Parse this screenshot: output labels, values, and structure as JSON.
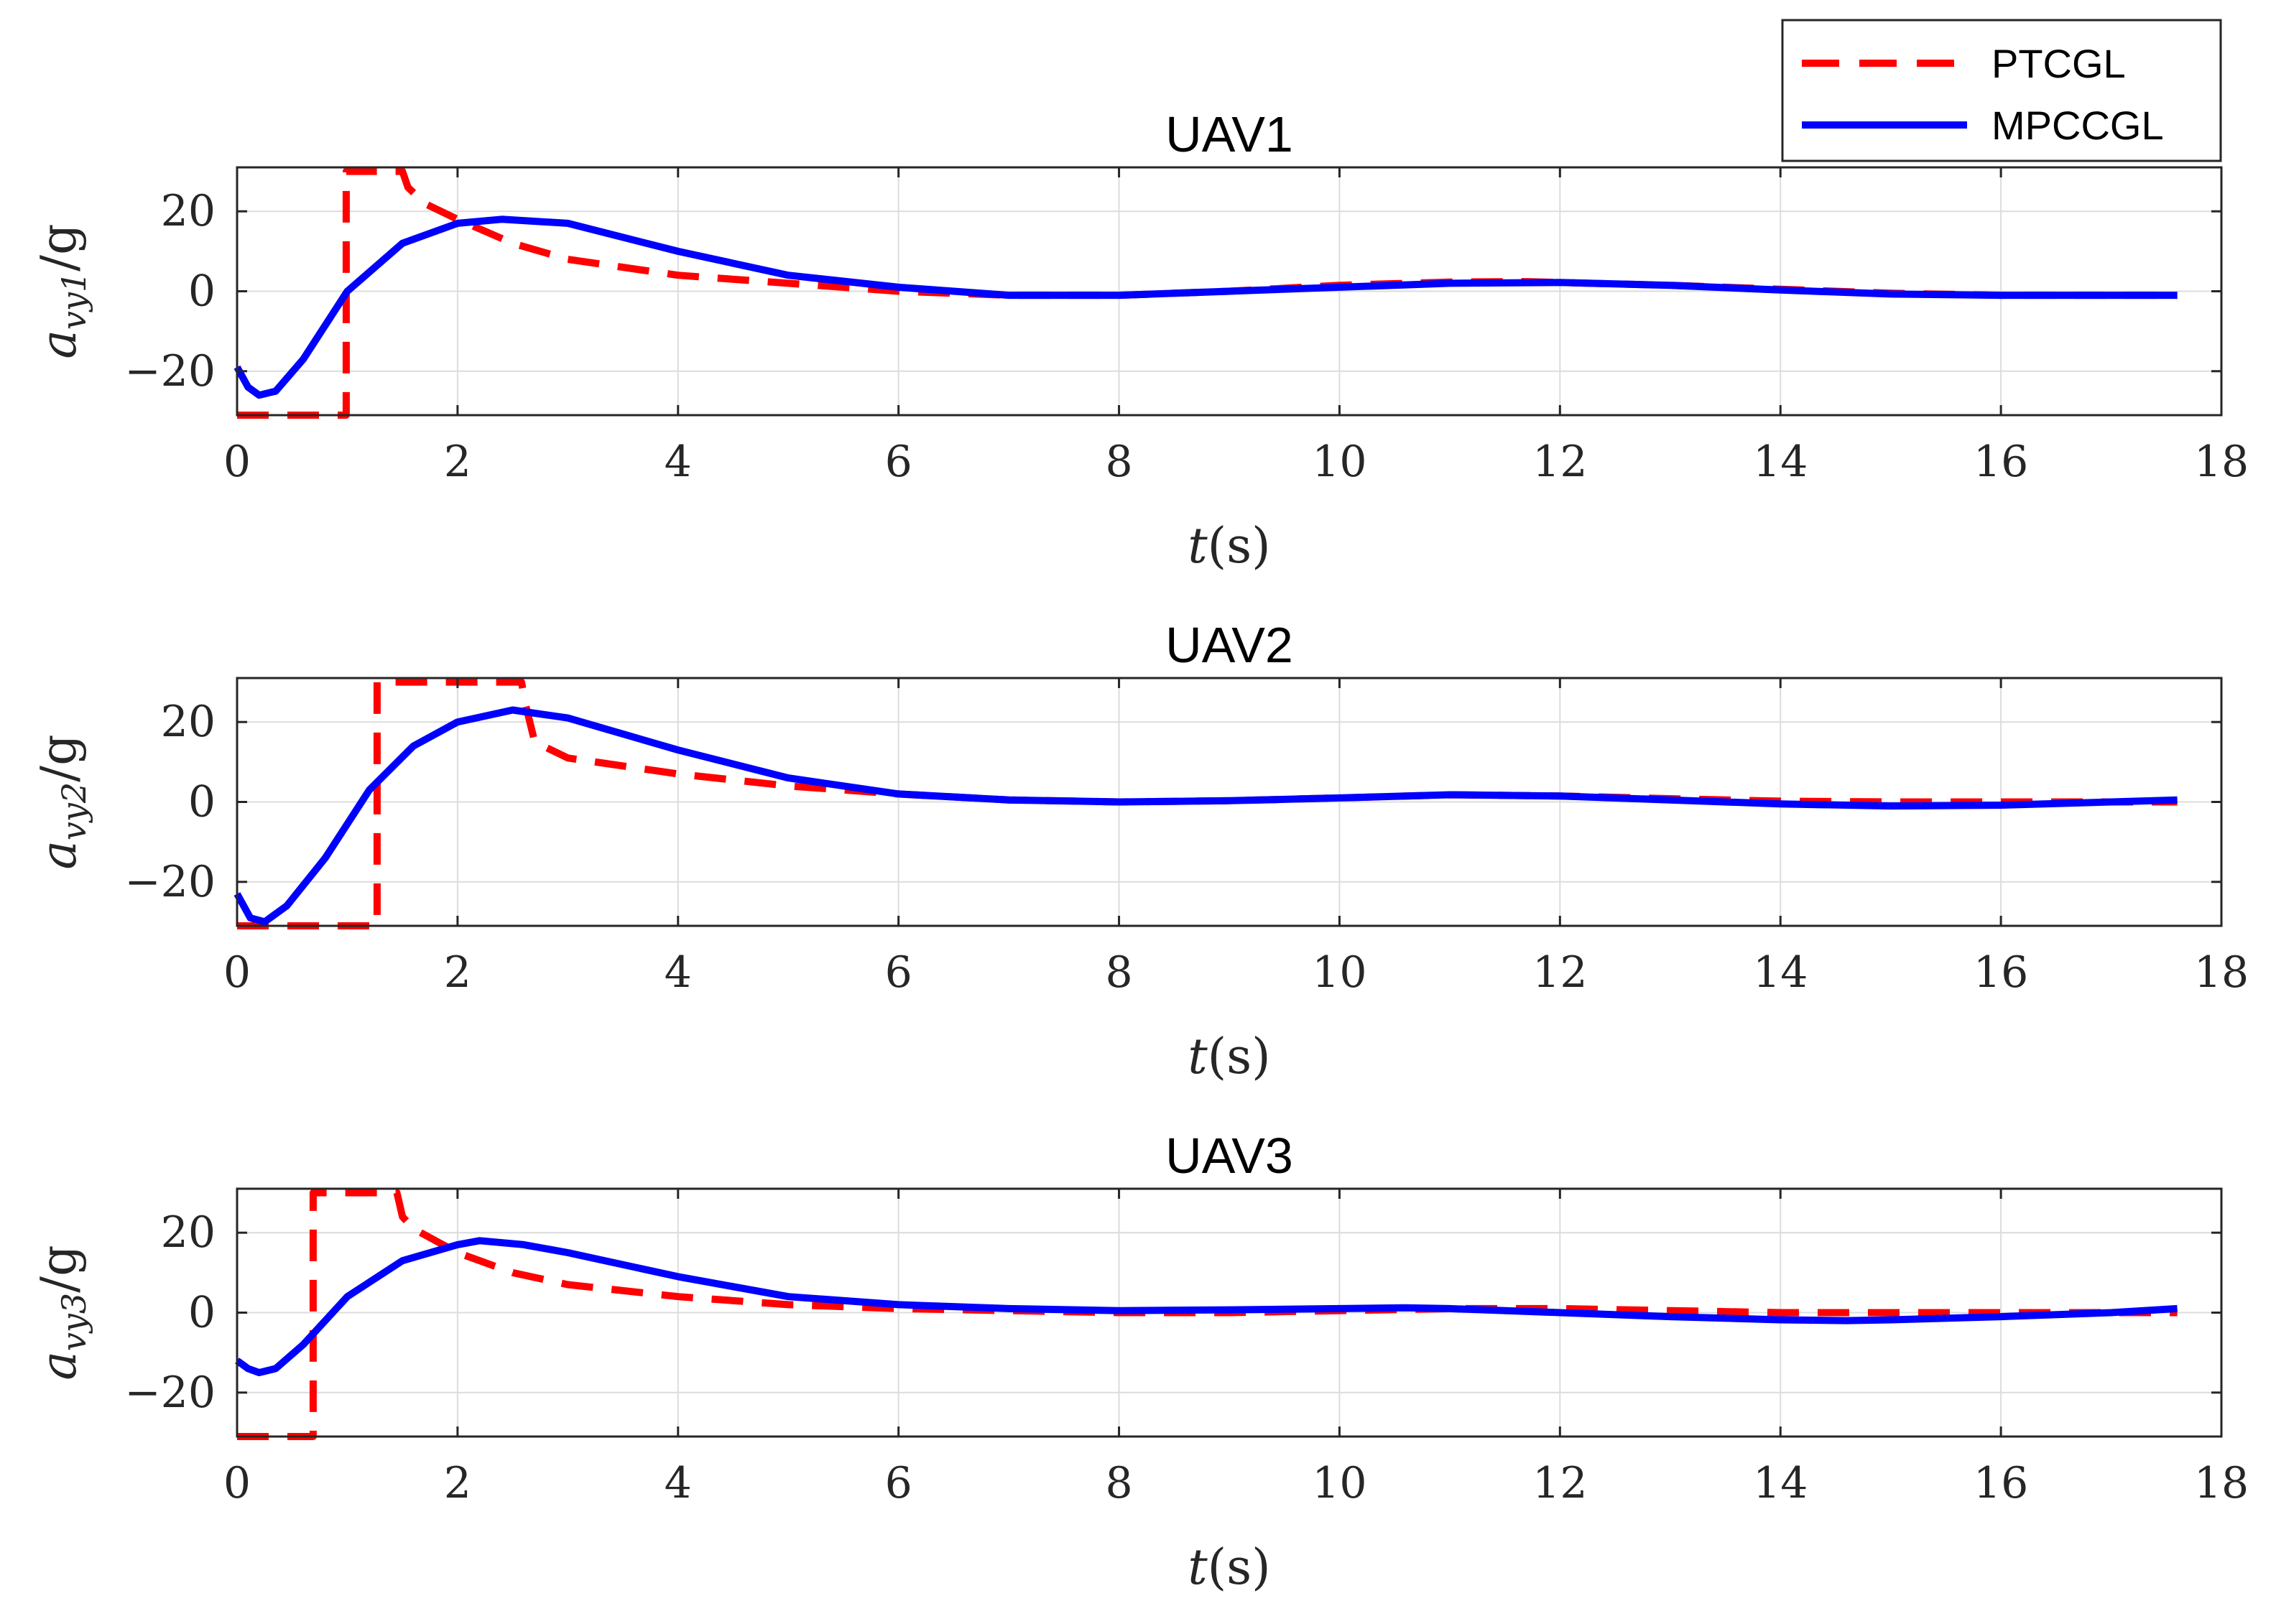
{
  "legend": {
    "entries": [
      {
        "label": "PTCGL",
        "color": "#ff0000",
        "style": "dashed"
      },
      {
        "label": "MPCCGL",
        "color": "#0000ff",
        "style": "solid"
      }
    ]
  },
  "chart_data": [
    {
      "type": "line",
      "title": "UAV1",
      "xlabel": "t(s)",
      "ylabel": "a_vy1/g",
      "ylabel_parts": {
        "base": "a",
        "sub": "vy1",
        "suffix": "/g"
      },
      "xlim": [
        0,
        18
      ],
      "ylim": [
        -31,
        31
      ],
      "xticks": [
        0,
        2,
        4,
        6,
        8,
        10,
        12,
        14,
        16,
        18
      ],
      "yticks": [
        -20,
        0,
        20
      ],
      "ytick_labels": [
        "−20",
        "0",
        "20"
      ],
      "grid": true,
      "series": [
        {
          "name": "PTCGL",
          "color": "#ff0000",
          "style": "dashed",
          "x": [
            0,
            0.99,
            0.99,
            1.5,
            1.55,
            1.7,
            2.0,
            2.5,
            3.0,
            4.0,
            5.0,
            6.0,
            7.0,
            8.0,
            9.0,
            10.0,
            11.0,
            11.7,
            13.0,
            14.0,
            15.0,
            16.0,
            17.6
          ],
          "y": [
            -31,
            -31,
            30,
            30,
            26,
            22,
            18,
            12,
            8,
            4,
            2,
            0,
            -1,
            -1,
            0,
            1.5,
            2.3,
            2.4,
            1.5,
            0.5,
            -0.5,
            -1,
            -1
          ]
        },
        {
          "name": "MPCCGL",
          "color": "#0000ff",
          "style": "solid",
          "x": [
            0,
            0.1,
            0.2,
            0.35,
            0.6,
            1.0,
            1.5,
            2.0,
            2.4,
            3.0,
            4.0,
            5.0,
            6.0,
            7.0,
            8.0,
            9.0,
            10.0,
            11.0,
            12.0,
            13.0,
            14.0,
            15.0,
            16.0,
            17.0,
            17.6
          ],
          "y": [
            -19,
            -24,
            -26,
            -25,
            -17,
            0,
            12,
            17,
            18,
            17,
            10,
            4,
            1,
            -1,
            -1,
            0,
            1,
            2,
            2.2,
            1.5,
            0.3,
            -0.7,
            -1,
            -1,
            -1
          ]
        }
      ]
    },
    {
      "type": "line",
      "title": "UAV2",
      "xlabel": "t(s)",
      "ylabel": "a_vy2/g",
      "ylabel_parts": {
        "base": "a",
        "sub": "vy2",
        "suffix": "/g"
      },
      "xlim": [
        0,
        18
      ],
      "ylim": [
        -31,
        31
      ],
      "xticks": [
        0,
        2,
        4,
        6,
        8,
        10,
        12,
        14,
        16,
        18
      ],
      "yticks": [
        -20,
        0,
        20
      ],
      "ytick_labels": [
        "−20",
        "0",
        "20"
      ],
      "grid": true,
      "series": [
        {
          "name": "PTCGL",
          "color": "#ff0000",
          "style": "dashed",
          "x": [
            0,
            1.27,
            1.27,
            2.58,
            2.62,
            2.7,
            3.0,
            4.0,
            5.0,
            6.0,
            7.0,
            8.0,
            9.0,
            10.0,
            11.0,
            12.0,
            13.0,
            14.0,
            15.0,
            16.0,
            17.6
          ],
          "y": [
            -31,
            -31,
            30,
            30,
            24,
            15,
            11,
            7,
            4,
            2,
            0.5,
            0,
            0.3,
            1,
            1.8,
            1.5,
            0.8,
            0.2,
            0,
            0,
            0
          ]
        },
        {
          "name": "MPCCGL",
          "color": "#0000ff",
          "style": "solid",
          "x": [
            0,
            0.12,
            0.25,
            0.45,
            0.8,
            1.2,
            1.6,
            2.0,
            2.5,
            3.0,
            4.0,
            5.0,
            6.0,
            7.0,
            8.0,
            9.0,
            10.0,
            11.0,
            12.0,
            13.0,
            14.0,
            15.0,
            16.0,
            17.0,
            17.6
          ],
          "y": [
            -23,
            -29,
            -30,
            -26,
            -14,
            3,
            14,
            20,
            23,
            21,
            13,
            6,
            2,
            0.5,
            0,
            0.3,
            1,
            1.8,
            1.5,
            0.5,
            -0.5,
            -1,
            -0.8,
            0,
            0.5
          ]
        }
      ]
    },
    {
      "type": "line",
      "title": "UAV3",
      "xlabel": "t(s)",
      "ylabel": "a_vy3/g",
      "ylabel_parts": {
        "base": "a",
        "sub": "vy3",
        "suffix": "/g"
      },
      "xlim": [
        0,
        18
      ],
      "ylim": [
        -31,
        31
      ],
      "xticks": [
        0,
        2,
        4,
        6,
        8,
        10,
        12,
        14,
        16,
        18
      ],
      "yticks": [
        -20,
        0,
        20
      ],
      "ytick_labels": [
        "−20",
        "0",
        "20"
      ],
      "grid": true,
      "series": [
        {
          "name": "PTCGL",
          "color": "#ff0000",
          "style": "dashed",
          "x": [
            0,
            0.69,
            0.69,
            1.45,
            1.5,
            1.6,
            2.0,
            2.5,
            3.0,
            4.0,
            5.0,
            6.0,
            7.0,
            8.0,
            9.0,
            10.0,
            11.0,
            12.0,
            13.0,
            14.0,
            15.0,
            16.0,
            17.6
          ],
          "y": [
            -31,
            -31,
            30,
            30,
            24,
            21,
            15,
            10,
            7,
            4,
            2,
            1,
            0.5,
            0,
            0,
            0.5,
            1,
            1,
            0.5,
            0,
            0,
            0,
            0
          ]
        },
        {
          "name": "MPCCGL",
          "color": "#0000ff",
          "style": "solid",
          "x": [
            0,
            0.1,
            0.2,
            0.35,
            0.6,
            1.0,
            1.5,
            2.0,
            2.2,
            2.6,
            3.0,
            4.0,
            5.0,
            6.0,
            7.0,
            8.0,
            9.0,
            10.0,
            10.6,
            11.0,
            12.0,
            13.0,
            14.0,
            14.6,
            15.0,
            16.0,
            17.0,
            17.6
          ],
          "y": [
            -12,
            -14,
            -15,
            -14,
            -8,
            4,
            13,
            17,
            18,
            17,
            15,
            9,
            4,
            2,
            1,
            0.5,
            0.7,
            1,
            1.2,
            1,
            0,
            -1,
            -1.8,
            -2,
            -1.8,
            -1,
            0,
            1
          ]
        }
      ]
    }
  ]
}
